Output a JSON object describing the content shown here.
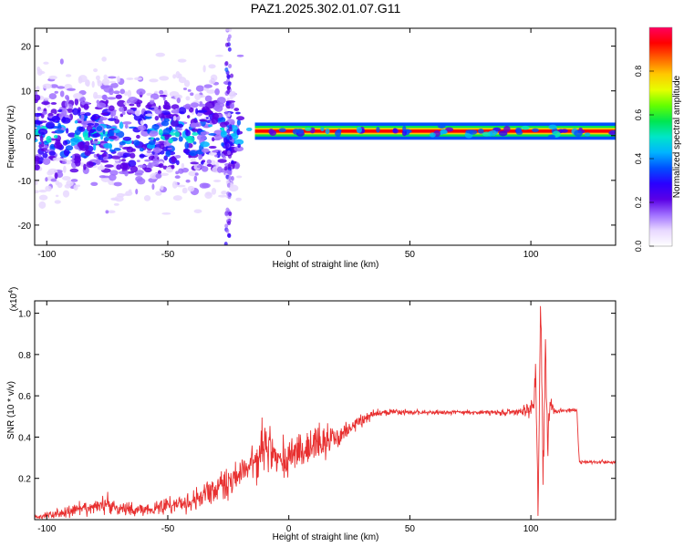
{
  "chart_data": [
    {
      "type": "heatmap",
      "title": "PAZ1.2025.302.01.07.G11",
      "xlabel": "Height of straight line (km)",
      "ylabel": "Frequency (Hz)",
      "xlim": [
        -105,
        135
      ],
      "ylim": [
        -24.5,
        24
      ],
      "xticks": [
        -100,
        -50,
        0,
        50,
        100
      ],
      "yticks": [
        -20,
        -10,
        0,
        10,
        20
      ],
      "colorbar": {
        "label": "Normalized spectral amplitude",
        "range": [
          0,
          1
        ],
        "ticks": [
          "0.0",
          "0.2",
          "0.4",
          "0.6",
          "0.8"
        ],
        "tick_values": [
          0.0,
          0.2,
          0.4,
          0.6,
          0.8
        ],
        "colors": [
          "#ffffff",
          "#e8d8ff",
          "#a070ff",
          "#5a00e6",
          "#2a00ff",
          "#0050ff",
          "#00b4ff",
          "#00e6c8",
          "#00e650",
          "#64ff00",
          "#e6ff00",
          "#ffc800",
          "#ff6400",
          "#ff0000",
          "#ff0060"
        ]
      },
      "bands": [
        {
          "x_start": -105,
          "x_end": -20,
          "freq_center": 0,
          "spread": 9,
          "amplitude": 0.45,
          "note": "noisy scattered region"
        },
        {
          "x_start": -20,
          "x_end": 135,
          "freq_center": 1,
          "spread": 1.2,
          "amplitude": 0.95,
          "note": "strong carrier line"
        }
      ]
    },
    {
      "type": "line",
      "xlabel": "Height of straight line (km)",
      "ylabel": "SNR (10 * v/v)",
      "scale_label": "(x10",
      "scale_exponent": "4",
      "scale_suffix": ")",
      "xlim": [
        -105,
        135
      ],
      "ylim": [
        0,
        1.06
      ],
      "xticks": [
        -100,
        -50,
        0,
        50,
        100
      ],
      "yticks": [
        "0.2",
        "0.4",
        "0.6",
        "0.8",
        "1.0"
      ],
      "ytick_values": [
        0.2,
        0.4,
        0.6,
        0.8,
        1.0
      ],
      "line_color": "#e83030",
      "series": [
        {
          "name": "SNR",
          "x": [
            -105,
            -100,
            -90,
            -80,
            -75,
            -70,
            -60,
            -50,
            -40,
            -35,
            -30,
            -25,
            -20,
            -15,
            -12,
            -10,
            -5,
            0,
            5,
            10,
            15,
            20,
            25,
            30,
            35,
            40,
            50,
            60,
            70,
            80,
            90,
            95,
            100,
            102,
            103,
            104,
            105,
            106,
            107,
            108,
            110,
            115,
            118,
            119,
            120,
            125,
            130,
            135
          ],
          "y": [
            0.01,
            0.02,
            0.04,
            0.06,
            0.08,
            0.05,
            0.05,
            0.07,
            0.09,
            0.12,
            0.15,
            0.18,
            0.22,
            0.27,
            0.3,
            0.36,
            0.3,
            0.3,
            0.33,
            0.36,
            0.38,
            0.4,
            0.44,
            0.48,
            0.51,
            0.52,
            0.52,
            0.52,
            0.52,
            0.52,
            0.52,
            0.52,
            0.53,
            0.7,
            0.06,
            1.05,
            0.3,
            0.85,
            0.4,
            0.55,
            0.53,
            0.53,
            0.53,
            0.53,
            0.28,
            0.28,
            0.28,
            0.28
          ],
          "noise": [
            0.01,
            0.02,
            0.03,
            0.03,
            0.05,
            0.03,
            0.03,
            0.04,
            0.05,
            0.06,
            0.06,
            0.07,
            0.07,
            0.08,
            0.1,
            0.14,
            0.1,
            0.09,
            0.09,
            0.08,
            0.07,
            0.05,
            0.04,
            0.03,
            0.02,
            0.015,
            0.012,
            0.01,
            0.01,
            0.01,
            0.015,
            0.02,
            0.05,
            0.1,
            0.08,
            0.06,
            0.2,
            0.15,
            0.12,
            0.05,
            0.015,
            0.01,
            0.01,
            0.01,
            0.008,
            0.008,
            0.008,
            0.008
          ]
        }
      ]
    }
  ]
}
